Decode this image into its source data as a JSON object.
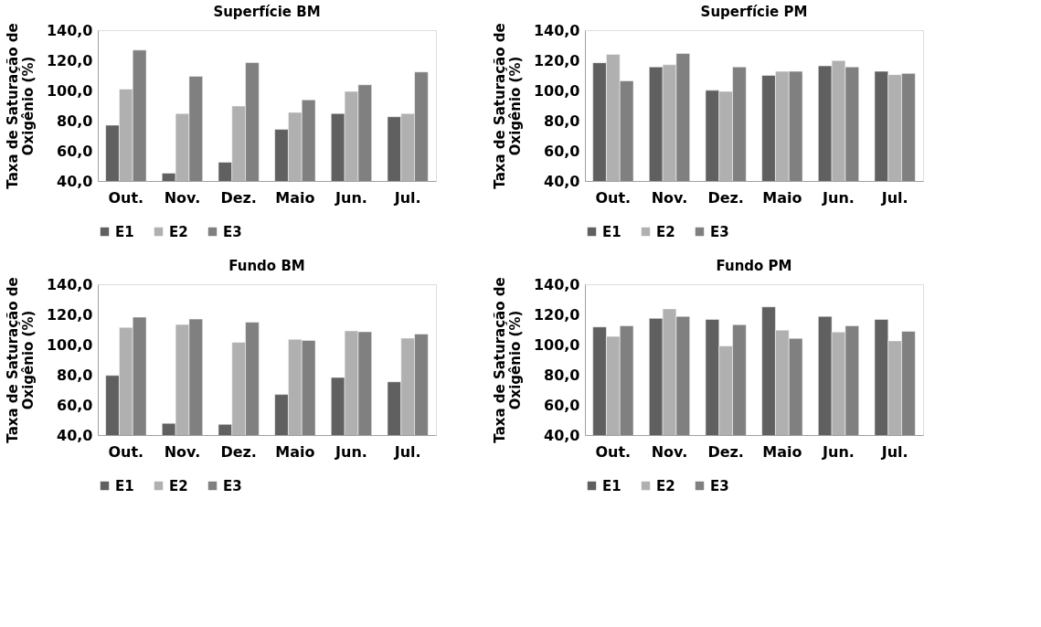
{
  "chart_data": [
    {
      "type": "bar",
      "title": "Superfície BM",
      "ylabel": "Taxa de Saturação de Oxigênio (%)",
      "categories": [
        "Out.",
        "Nov.",
        "Dez.",
        "Maio",
        "Jun.",
        "Jul."
      ],
      "series": [
        {
          "name": "E1",
          "color": "#606060",
          "values": [
            77,
            45.2,
            52.4,
            74.2,
            84.7,
            82.6
          ]
        },
        {
          "name": "E2",
          "color": "#b0b0b0",
          "values": [
            100.9,
            84.7,
            89.7,
            85.5,
            99.4,
            84.7
          ]
        },
        {
          "name": "E3",
          "color": "#808080",
          "values": [
            126.8,
            109.4,
            118.5,
            93.8,
            103.8,
            112.3
          ]
        }
      ],
      "ylim": [
        40,
        140
      ],
      "yticks": [
        {
          "value": 40,
          "label": "40,0"
        },
        {
          "value": 60,
          "label": "60,0"
        },
        {
          "value": 80,
          "label": "80,0"
        },
        {
          "value": 100,
          "label": "100,0"
        },
        {
          "value": 120,
          "label": "120,0"
        },
        {
          "value": 140,
          "label": "140,0"
        }
      ],
      "grid": false,
      "legend": "bottom"
    },
    {
      "type": "bar",
      "title": "Superfície PM",
      "ylabel": "Taxa de Saturação de Oxigênio (%)",
      "categories": [
        "Out.",
        "Nov.",
        "Dez.",
        "Maio",
        "Jun.",
        "Jul."
      ],
      "series": [
        {
          "name": "E1",
          "color": "#606060",
          "values": [
            118.4,
            115.6,
            100.1,
            110,
            116.3,
            112.7
          ]
        },
        {
          "name": "E2",
          "color": "#b0b0b0",
          "values": [
            124,
            117.1,
            99.4,
            112.7,
            119.8,
            110.5
          ]
        },
        {
          "name": "E3",
          "color": "#808080",
          "values": [
            106.4,
            124.5,
            115.6,
            112.7,
            115.6,
            111.3
          ]
        }
      ],
      "ylim": [
        40,
        140
      ],
      "yticks": [
        {
          "value": 40,
          "label": "40,0"
        },
        {
          "value": 60,
          "label": "60,0"
        },
        {
          "value": 80,
          "label": "80,0"
        },
        {
          "value": 100,
          "label": "100,0"
        },
        {
          "value": 120,
          "label": "120,0"
        },
        {
          "value": 140,
          "label": "140,0"
        }
      ],
      "grid": false,
      "legend": "bottom"
    },
    {
      "type": "bar",
      "title": "Fundo BM",
      "ylabel": "Taxa de Saturação de Oxigênio (%)",
      "categories": [
        "Out.",
        "Nov.",
        "Dez.",
        "Maio",
        "Jun.",
        "Jul."
      ],
      "series": [
        {
          "name": "E1",
          "color": "#606060",
          "values": [
            79.5,
            47.8,
            47.1,
            66.9,
            78.2,
            75.3
          ]
        },
        {
          "name": "E2",
          "color": "#b0b0b0",
          "values": [
            111.4,
            113.3,
            101.5,
            103.5,
            109.1,
            104.3
          ]
        },
        {
          "name": "E3",
          "color": "#808080",
          "values": [
            118.2,
            116.9,
            114.8,
            102.8,
            108.5,
            107
          ]
        }
      ],
      "ylim": [
        40,
        140
      ],
      "yticks": [
        {
          "value": 40,
          "label": "40,0"
        },
        {
          "value": 60,
          "label": "60,0"
        },
        {
          "value": 80,
          "label": "80,0"
        },
        {
          "value": 100,
          "label": "100,0"
        },
        {
          "value": 120,
          "label": "120,0"
        },
        {
          "value": 140,
          "label": "140,0"
        }
      ],
      "grid": false,
      "legend": "bottom"
    },
    {
      "type": "bar",
      "title": "Fundo PM",
      "ylabel": "Taxa de Saturação de Oxigênio (%)",
      "categories": [
        "Out.",
        "Nov.",
        "Dez.",
        "Maio",
        "Jun.",
        "Jul."
      ],
      "series": [
        {
          "name": "E1",
          "color": "#606060",
          "values": [
            111.7,
            117.4,
            116.7,
            125,
            118.7,
            116.7
          ]
        },
        {
          "name": "E2",
          "color": "#b0b0b0",
          "values": [
            105.4,
            123.7,
            99.1,
            109.6,
            108.3,
            102.5
          ]
        },
        {
          "name": "E3",
          "color": "#808080",
          "values": [
            112.5,
            118.7,
            113.2,
            104.1,
            112.5,
            108.8
          ]
        }
      ],
      "ylim": [
        40,
        140
      ],
      "yticks": [
        {
          "value": 40,
          "label": "40,0"
        },
        {
          "value": 60,
          "label": "60,0"
        },
        {
          "value": 80,
          "label": "80,0"
        },
        {
          "value": 100,
          "label": "100,0"
        },
        {
          "value": 120,
          "label": "120,0"
        },
        {
          "value": 140,
          "label": "140,0"
        }
      ],
      "grid": false,
      "legend": "bottom"
    }
  ]
}
